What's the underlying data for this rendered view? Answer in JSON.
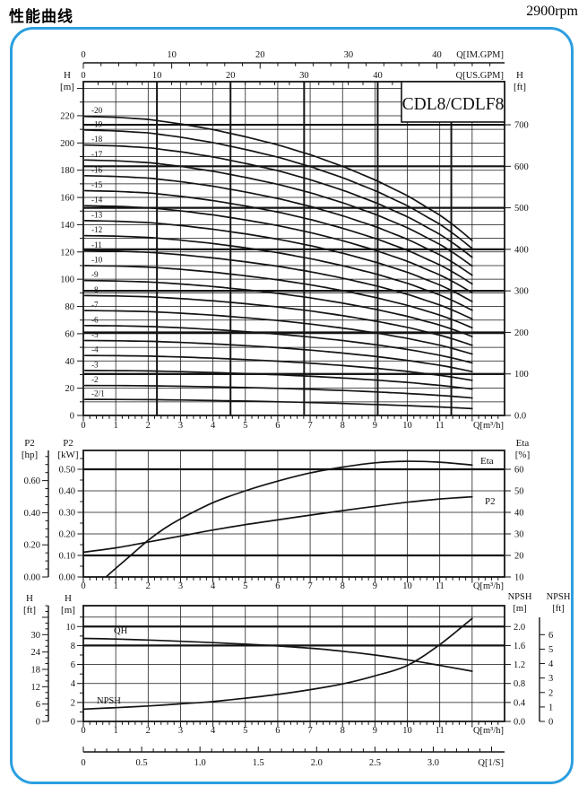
{
  "header": {
    "title": "性能曲线",
    "rpm": "2900rpm"
  },
  "panel": {
    "border_color": "#2B9FE0",
    "ink_color": "#141414"
  },
  "chart_data": [
    {
      "id": "head-capacity",
      "type": "line",
      "title": "CDL8/CDLF8",
      "x_axis": {
        "label": "Q[m³/h]",
        "ticks": [
          0,
          1,
          2,
          3,
          4,
          5,
          6,
          7,
          8,
          9,
          10,
          11
        ],
        "minor_step": 0.2,
        "max": 13
      },
      "aux_axis_im": {
        "label": "Q[IM.GPM]",
        "ticks": [
          0,
          10,
          20,
          30,
          40
        ],
        "minor_step": 2,
        "gpm_per_m3h": 3.666
      },
      "aux_axis_us": {
        "label": "Q[US.GPM]",
        "ticks": [
          0,
          10,
          20,
          30,
          40
        ],
        "minor_step": 2,
        "gpm_per_m3h": 4.4029
      },
      "y_left": {
        "name": "H",
        "unit": "[m]",
        "ticks": [
          0,
          20,
          40,
          60,
          80,
          100,
          120,
          140,
          160,
          180,
          200,
          220
        ],
        "minor_step": 10,
        "max": 245
      },
      "y_right": {
        "name": "H",
        "unit": "[ft]",
        "tick_labels": [
          "0.0",
          "100",
          "200",
          "300",
          "400",
          "500",
          "600",
          "700"
        ],
        "tick_values_ft": [
          0,
          100,
          200,
          300,
          400,
          500,
          600,
          700
        ],
        "m_per_ft": 0.3048
      },
      "grid": {
        "thin_v": [
          1,
          2,
          3,
          4,
          5,
          6,
          7,
          8,
          9,
          10,
          11,
          12
        ],
        "thick_v_usgpm": [
          10,
          20,
          30,
          40,
          50
        ],
        "thick_h_ft": [
          100,
          200,
          300,
          400,
          500,
          600,
          700
        ],
        "thin_h_step_m": 10
      },
      "series": {
        "q_start": 0.05,
        "profile_q": [
          0,
          1,
          2,
          3,
          4,
          5,
          6,
          7,
          8,
          9,
          10,
          11,
          11.5,
          12
        ],
        "profile_r": [
          1,
          0.997,
          0.99,
          0.975,
          0.956,
          0.932,
          0.905,
          0.872,
          0.833,
          0.788,
          0.735,
          0.67,
          0.63,
          0.585
        ],
        "stages": [
          {
            "label": "-2/1",
            "shutoff_m": 11.8,
            "droop": 1.6
          },
          {
            "label": "-2",
            "shutoff_m": 22,
            "droop": 1
          },
          {
            "label": "-3",
            "shutoff_m": 33,
            "droop": 1
          },
          {
            "label": "-4",
            "shutoff_m": 44,
            "droop": 1
          },
          {
            "label": "-5",
            "shutoff_m": 55,
            "droop": 1
          },
          {
            "label": "-6",
            "shutoff_m": 66,
            "droop": 1
          },
          {
            "label": "-7",
            "shutoff_m": 77,
            "droop": 1
          },
          {
            "label": "-8",
            "shutoff_m": 88,
            "droop": 1
          },
          {
            "label": "-9",
            "shutoff_m": 99,
            "droop": 1
          },
          {
            "label": "-10",
            "shutoff_m": 110,
            "droop": 1
          },
          {
            "label": "-11",
            "shutoff_m": 121,
            "droop": 1
          },
          {
            "label": "-12",
            "shutoff_m": 132,
            "droop": 1
          },
          {
            "label": "-13",
            "shutoff_m": 143,
            "droop": 1
          },
          {
            "label": "-14",
            "shutoff_m": 154,
            "droop": 1
          },
          {
            "label": "-15",
            "shutoff_m": 165,
            "droop": 1
          },
          {
            "label": "-16",
            "shutoff_m": 176,
            "droop": 1
          },
          {
            "label": "-17",
            "shutoff_m": 187.5,
            "droop": 1
          },
          {
            "label": "-18",
            "shutoff_m": 198.5,
            "droop": 1
          },
          {
            "label": "-19",
            "shutoff_m": 209.5,
            "droop": 1
          },
          {
            "label": "-20",
            "shutoff_m": 219.5,
            "droop": 1
          }
        ]
      }
    },
    {
      "id": "power-efficiency",
      "type": "line",
      "x_axis": {
        "label": "Q[m³/h]",
        "ticks": [
          0,
          1,
          2,
          3,
          4,
          5,
          6,
          7,
          8,
          9,
          10,
          11
        ],
        "minor_step": 0.2,
        "max": 13
      },
      "y_left_outer": {
        "name": "P2",
        "unit": "[hp]",
        "tick_labels": [
          "0.00",
          "0.20",
          "0.40",
          "0.60"
        ],
        "tick_values": [
          0,
          0.2,
          0.4,
          0.6
        ],
        "minor_step": 0.05,
        "kw_per_hp": 0.7457
      },
      "y_left": {
        "name": "P2",
        "unit": "[kW]",
        "tick_labels": [
          "0.00",
          "0.10",
          "0.20",
          "0.30",
          "0.40",
          "0.50"
        ],
        "tick_values": [
          0,
          0.1,
          0.2,
          0.3,
          0.4,
          0.5
        ],
        "minor_step": 0.05,
        "max": 0.5875
      },
      "y_right": {
        "name": "Eta",
        "unit": "[%]",
        "ticks": [
          10,
          20,
          30,
          40,
          50,
          60
        ]
      },
      "grid": {
        "thin_v": [
          1,
          2,
          3,
          4,
          5,
          6,
          7,
          8,
          9,
          10,
          11,
          12
        ],
        "thin_h_kw": [
          0.2,
          0.3,
          0.4
        ],
        "thick_h_kw": [
          0.1,
          0.5
        ]
      },
      "series": [
        {
          "name": "P2",
          "label": "P2",
          "q": [
            0,
            1,
            2,
            3,
            4,
            5,
            6,
            7,
            8,
            9,
            10,
            11,
            12
          ],
          "kw": [
            0.115,
            0.135,
            0.162,
            0.19,
            0.218,
            0.243,
            0.265,
            0.287,
            0.308,
            0.328,
            0.347,
            0.362,
            0.372
          ]
        },
        {
          "name": "Eta",
          "label": "Eta",
          "q": [
            0.7,
            1,
            1.5,
            2,
            2.5,
            3,
            4,
            5,
            6,
            7,
            8,
            9,
            10,
            11,
            12
          ],
          "pct": [
            10,
            14,
            20.5,
            27,
            32.5,
            37,
            44.5,
            50,
            54.5,
            58.3,
            61,
            63,
            63.7,
            63.3,
            62
          ]
        }
      ]
    },
    {
      "id": "qh-npsh",
      "type": "line",
      "x_axis": {
        "label": "Q[m³/h]",
        "ticks": [
          0,
          1,
          2,
          3,
          4,
          5,
          6,
          7,
          8,
          9,
          10,
          11
        ],
        "minor_step": 0.2,
        "max": 13
      },
      "x_axis_ls": {
        "label": "Q[1/S]",
        "tick_labels": [
          "0",
          "0.5",
          "1.0",
          "1.5",
          "2.0",
          "2.5",
          "3.0"
        ],
        "tick_values": [
          0,
          0.5,
          1,
          1.5,
          2,
          2.5,
          3
        ],
        "minor_step": 0.1,
        "m3h_per_ls": 3.6
      },
      "y_left_outer": {
        "name": "H",
        "unit": "[ft]",
        "ticks": [
          0,
          6,
          12,
          18,
          24,
          30
        ],
        "minor_step": 2,
        "m_per_ft": 0.3048
      },
      "y_left": {
        "name": "H",
        "unit": "[m]",
        "ticks": [
          0,
          2,
          4,
          6,
          8,
          10
        ],
        "minor_step": 1,
        "max": 12.2
      },
      "y_right": {
        "name": "NPSH",
        "unit": "[m]",
        "tick_labels": [
          "0.0",
          "0.4",
          "0.8",
          "1.2",
          "1.6",
          "2.0"
        ],
        "tick_values": [
          0,
          0.4,
          0.8,
          1.2,
          1.6,
          2.0
        ],
        "h_per_npsh_m": 5
      },
      "y_right_outer": {
        "name": "NPSH",
        "unit": "[ft]",
        "ticks": [
          0,
          1,
          2,
          3,
          4,
          5,
          6
        ],
        "m_per_ft": 0.3048
      },
      "grid": {
        "thin_v": [
          1,
          2,
          3,
          4,
          5,
          6,
          7,
          8,
          9,
          10,
          11,
          12
        ],
        "thin_h_m": [
          2,
          4,
          6,
          11
        ],
        "thick_h_m": [
          8,
          10
        ]
      },
      "series": [
        {
          "name": "QH",
          "label": "QH",
          "q": [
            0,
            1,
            2,
            3,
            4,
            5,
            6,
            7,
            8,
            9,
            10,
            11,
            12
          ],
          "h_m": [
            8.75,
            8.68,
            8.58,
            8.45,
            8.3,
            8.14,
            7.95,
            7.72,
            7.4,
            7.0,
            6.5,
            5.9,
            5.3
          ]
        },
        {
          "name": "NPSH",
          "label": "NPSH",
          "q": [
            0,
            1,
            2,
            3,
            4,
            5,
            6,
            7,
            8,
            9,
            10,
            11,
            12
          ],
          "npsh_m": [
            0.26,
            0.29,
            0.325,
            0.37,
            0.42,
            0.49,
            0.57,
            0.67,
            0.79,
            0.96,
            1.18,
            1.62,
            2.17
          ]
        }
      ]
    }
  ]
}
